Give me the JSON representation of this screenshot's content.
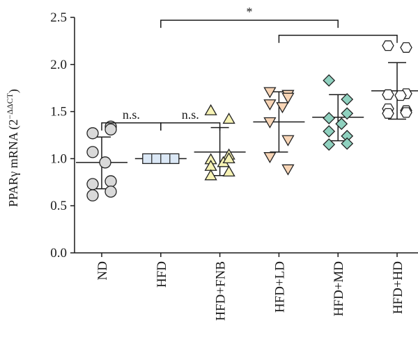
{
  "chart_data": {
    "type": "scatter",
    "ylabel": "PPARγ mRNA (2",
    "ylabel_sup": "−ΔΔCT",
    "ylabel_close": ")",
    "ylim": [
      0,
      2.5
    ],
    "yticks": [
      "0.0",
      "0.5",
      "1.0",
      "1.5",
      "2.0",
      "2.5"
    ],
    "ytick_values": [
      0,
      0.5,
      1.0,
      1.5,
      2.0,
      2.5
    ],
    "grid": false,
    "categories": [
      "ND",
      "HFD",
      "HFD+FNB",
      "HFD+LD",
      "HFD+MD",
      "HFD+HD"
    ],
    "groups": [
      {
        "name": "ND",
        "marker": "circle",
        "fill": "#d9d9d9",
        "points": [
          1.27,
          1.34,
          1.31,
          1.07,
          0.96,
          0.73,
          0.76,
          0.61,
          0.65
        ],
        "mean": 0.96,
        "sd_low": 0.68,
        "sd_high": 1.23
      },
      {
        "name": "HFD",
        "marker": "box",
        "fill": "#dbe8f6",
        "points": [
          1.0,
          1.0,
          1.0,
          1.0,
          1.0,
          1.0,
          1.0,
          1.0,
          1.0
        ],
        "mean": 1.0,
        "sd_low": 1.0,
        "sd_high": 1.0
      },
      {
        "name": "HFD+FNB",
        "marker": "triangle-up",
        "fill": "#f6f2b4",
        "points": [
          1.51,
          1.42,
          1.04,
          0.99,
          0.96,
          0.92,
          0.86,
          0.82,
          1.0
        ],
        "mean": 1.07,
        "sd_low": 0.82,
        "sd_high": 1.33
      },
      {
        "name": "HFD+LD",
        "marker": "triangle-down",
        "fill": "#f8d5b6",
        "points": [
          1.71,
          1.68,
          1.65,
          1.58,
          1.55,
          1.39,
          1.2,
          1.02,
          0.89
        ],
        "mean": 1.39,
        "sd_low": 1.07,
        "sd_high": 1.71
      },
      {
        "name": "HFD+MD",
        "marker": "diamond",
        "fill": "#8fd1bf",
        "points": [
          1.83,
          1.63,
          1.48,
          1.43,
          1.37,
          1.29,
          1.24,
          1.15,
          1.16
        ],
        "mean": 1.44,
        "sd_low": 1.19,
        "sd_high": 1.68
      },
      {
        "name": "HFD+HD",
        "marker": "hexagon",
        "fill": "#ffffff",
        "points": [
          2.2,
          2.18,
          1.69,
          1.68,
          1.67,
          1.53,
          1.51,
          1.48,
          1.49
        ],
        "mean": 1.72,
        "sd_low": 1.42,
        "sd_high": 2.02
      }
    ],
    "annotations": [
      {
        "label": "n.s.",
        "from": "ND",
        "to": "HFD",
        "y": 1.38
      },
      {
        "label": "n.s.",
        "from": "HFD",
        "to": "HFD+FNB",
        "y": 1.38
      },
      {
        "label": "*",
        "from": "HFD",
        "to": "HFD+MD",
        "y": 2.47
      },
      {
        "label": "",
        "from": "HFD+LD",
        "to": "HFD+HD",
        "y": 2.31
      }
    ]
  }
}
